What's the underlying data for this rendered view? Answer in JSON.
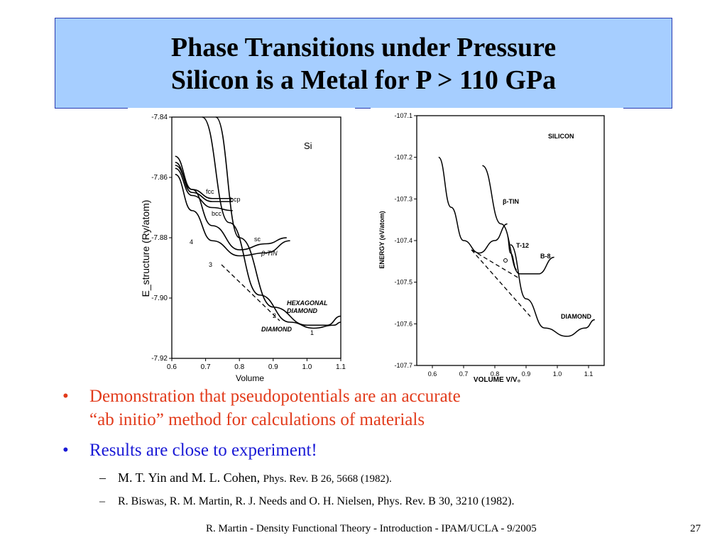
{
  "slide": {
    "title_line1": "Phase Transitions under Pressure",
    "title_line2": "Silicon is a Metal for P > 110 GPa",
    "bullets": [
      {
        "marker": "•",
        "text_line1": "Demonstration that pseudopotentials are an accurate",
        "text_line2": "“ab initio” method for calculations of materials"
      },
      {
        "marker": "•",
        "text_line1": "Results are close to experiment!"
      }
    ],
    "sub_bullets": [
      {
        "marker": "–",
        "authors": "M. T. Yin and M. L. Cohen, ",
        "ref": "Phys. Rev. B 26, 5668 (1982)."
      },
      {
        "marker": "–",
        "authors": "R. Biswas, R. M. Martin, R. J. Needs and O. H. Nielsen, Phys. Rev. B 30, 3210 (1982).",
        "ref": ""
      }
    ],
    "footer": "R. Martin - Density Functional Theory - Introduction - IPAM/UCLA - 9/2005",
    "page_number": "27"
  },
  "chart_data": [
    {
      "type": "line",
      "panel_label": "Si",
      "xlabel": "Volume",
      "ylabel": "E_structure (Ry/atom)",
      "x_ticks": [
        "0.6",
        "0.7",
        "0.8",
        "0.9",
        "1.0",
        "1.1"
      ],
      "y_ticks": [
        "-7.84",
        "-7.86",
        "-7.88",
        "-7.90",
        "-7.92"
      ],
      "xlim": [
        0.6,
        1.1
      ],
      "ylim": [
        -7.92,
        -7.84
      ],
      "series": [
        {
          "name": "fcc",
          "x": [
            0.61,
            0.66,
            0.72,
            0.78
          ],
          "y": [
            -7.855,
            -7.865,
            -7.868,
            -7.868
          ]
        },
        {
          "name": "hcp",
          "x": [
            0.61,
            0.66,
            0.72,
            0.78
          ],
          "y": [
            -7.856,
            -7.864,
            -7.867,
            -7.867
          ]
        },
        {
          "name": "bcc",
          "x": [
            0.61,
            0.66,
            0.72,
            0.78
          ],
          "y": [
            -7.857,
            -7.866,
            -7.87,
            -7.871
          ]
        },
        {
          "name": "sc",
          "x": [
            0.61,
            0.66,
            0.72,
            0.8,
            0.88,
            0.94
          ],
          "y": [
            -7.853,
            -7.864,
            -7.876,
            -7.884,
            -7.882,
            -7.88
          ]
        },
        {
          "name": "β-TIN",
          "x": [
            0.61,
            0.66,
            0.72,
            0.8,
            0.88,
            0.95
          ],
          "y": [
            -7.859,
            -7.871,
            -7.881,
            -7.886,
            -7.885,
            -7.881
          ]
        },
        {
          "name": "HEXAGONAL DIAMOND",
          "x": [
            0.73,
            0.8,
            0.9,
            1.0,
            1.06,
            1.1
          ],
          "y": [
            -7.84,
            -7.88,
            -7.903,
            -7.909,
            -7.909,
            -7.906
          ]
        },
        {
          "name": "DIAMOND",
          "x": [
            0.69,
            0.77,
            0.86,
            0.95,
            1.02,
            1.08,
            1.1
          ],
          "y": [
            -7.84,
            -7.875,
            -7.899,
            -7.908,
            -7.91,
            -7.909,
            -7.908
          ]
        }
      ],
      "annotations": [
        "1",
        "2",
        "3",
        "4"
      ]
    },
    {
      "type": "line",
      "panel_label": "SILICON",
      "xlabel": "VOLUME V/V₀",
      "ylabel": "ENERGY (eV/atom)",
      "x_ticks": [
        "0.6",
        "0.7",
        "0.8",
        "0.9",
        "1.0",
        "1.1"
      ],
      "y_ticks": [
        "-107.1",
        "-107.2",
        "-107.3",
        "-107.4",
        "-107.5",
        "-107.6",
        "-107.7"
      ],
      "xlim": [
        0.55,
        1.15
      ],
      "ylim": [
        -107.7,
        -107.1
      ],
      "series": [
        {
          "name": "β-TIN",
          "x": [
            0.62,
            0.66,
            0.7,
            0.75,
            0.8,
            0.84
          ],
          "y": [
            -107.2,
            -107.32,
            -107.4,
            -107.43,
            -107.4,
            -107.36
          ]
        },
        {
          "name": "T-12",
          "x": [
            0.84,
            0.85,
            0.87
          ],
          "y": [
            -107.39,
            -107.43,
            -107.47
          ]
        },
        {
          "name": "B-8",
          "x": [
            0.76,
            0.82,
            0.88,
            0.94,
            0.99
          ],
          "y": [
            -107.22,
            -107.36,
            -107.48,
            -107.48,
            -107.44
          ]
        },
        {
          "name": "DIAMOND",
          "x": [
            0.85,
            0.9,
            0.96,
            1.03,
            1.09,
            1.12
          ],
          "y": [
            -107.41,
            -107.54,
            -107.61,
            -107.63,
            -107.61,
            -107.59
          ]
        }
      ],
      "annotations": [
        "β-TIN",
        "T-12",
        "B-8",
        "DIAMOND"
      ]
    }
  ]
}
